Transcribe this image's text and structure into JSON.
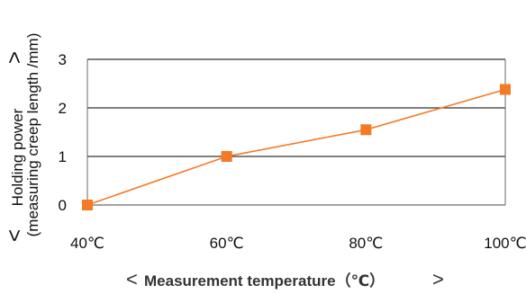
{
  "chart_data": {
    "type": "line",
    "categories": [
      "40℃",
      "60℃",
      "80℃",
      "100℃"
    ],
    "x": [
      40,
      60,
      80,
      100
    ],
    "series": [
      {
        "values": [
          0,
          1.0,
          1.55,
          2.38
        ]
      }
    ],
    "ylim": [
      0,
      3
    ],
    "yticks": [
      "0",
      "1",
      "2",
      "3"
    ],
    "grid": true,
    "ylabel": {
      "line1": "Holding power",
      "line2": "(measuring creep length /mm)",
      "left_bracket": "<",
      "right_bracket": ">"
    },
    "xlabel": {
      "text": "Measurement temperature（℃）",
      "left_bracket": "<",
      "right_bracket": ">"
    },
    "colors": {
      "series": "#f47a25",
      "grid": "#333333",
      "axis": "#6a6a6a"
    }
  }
}
